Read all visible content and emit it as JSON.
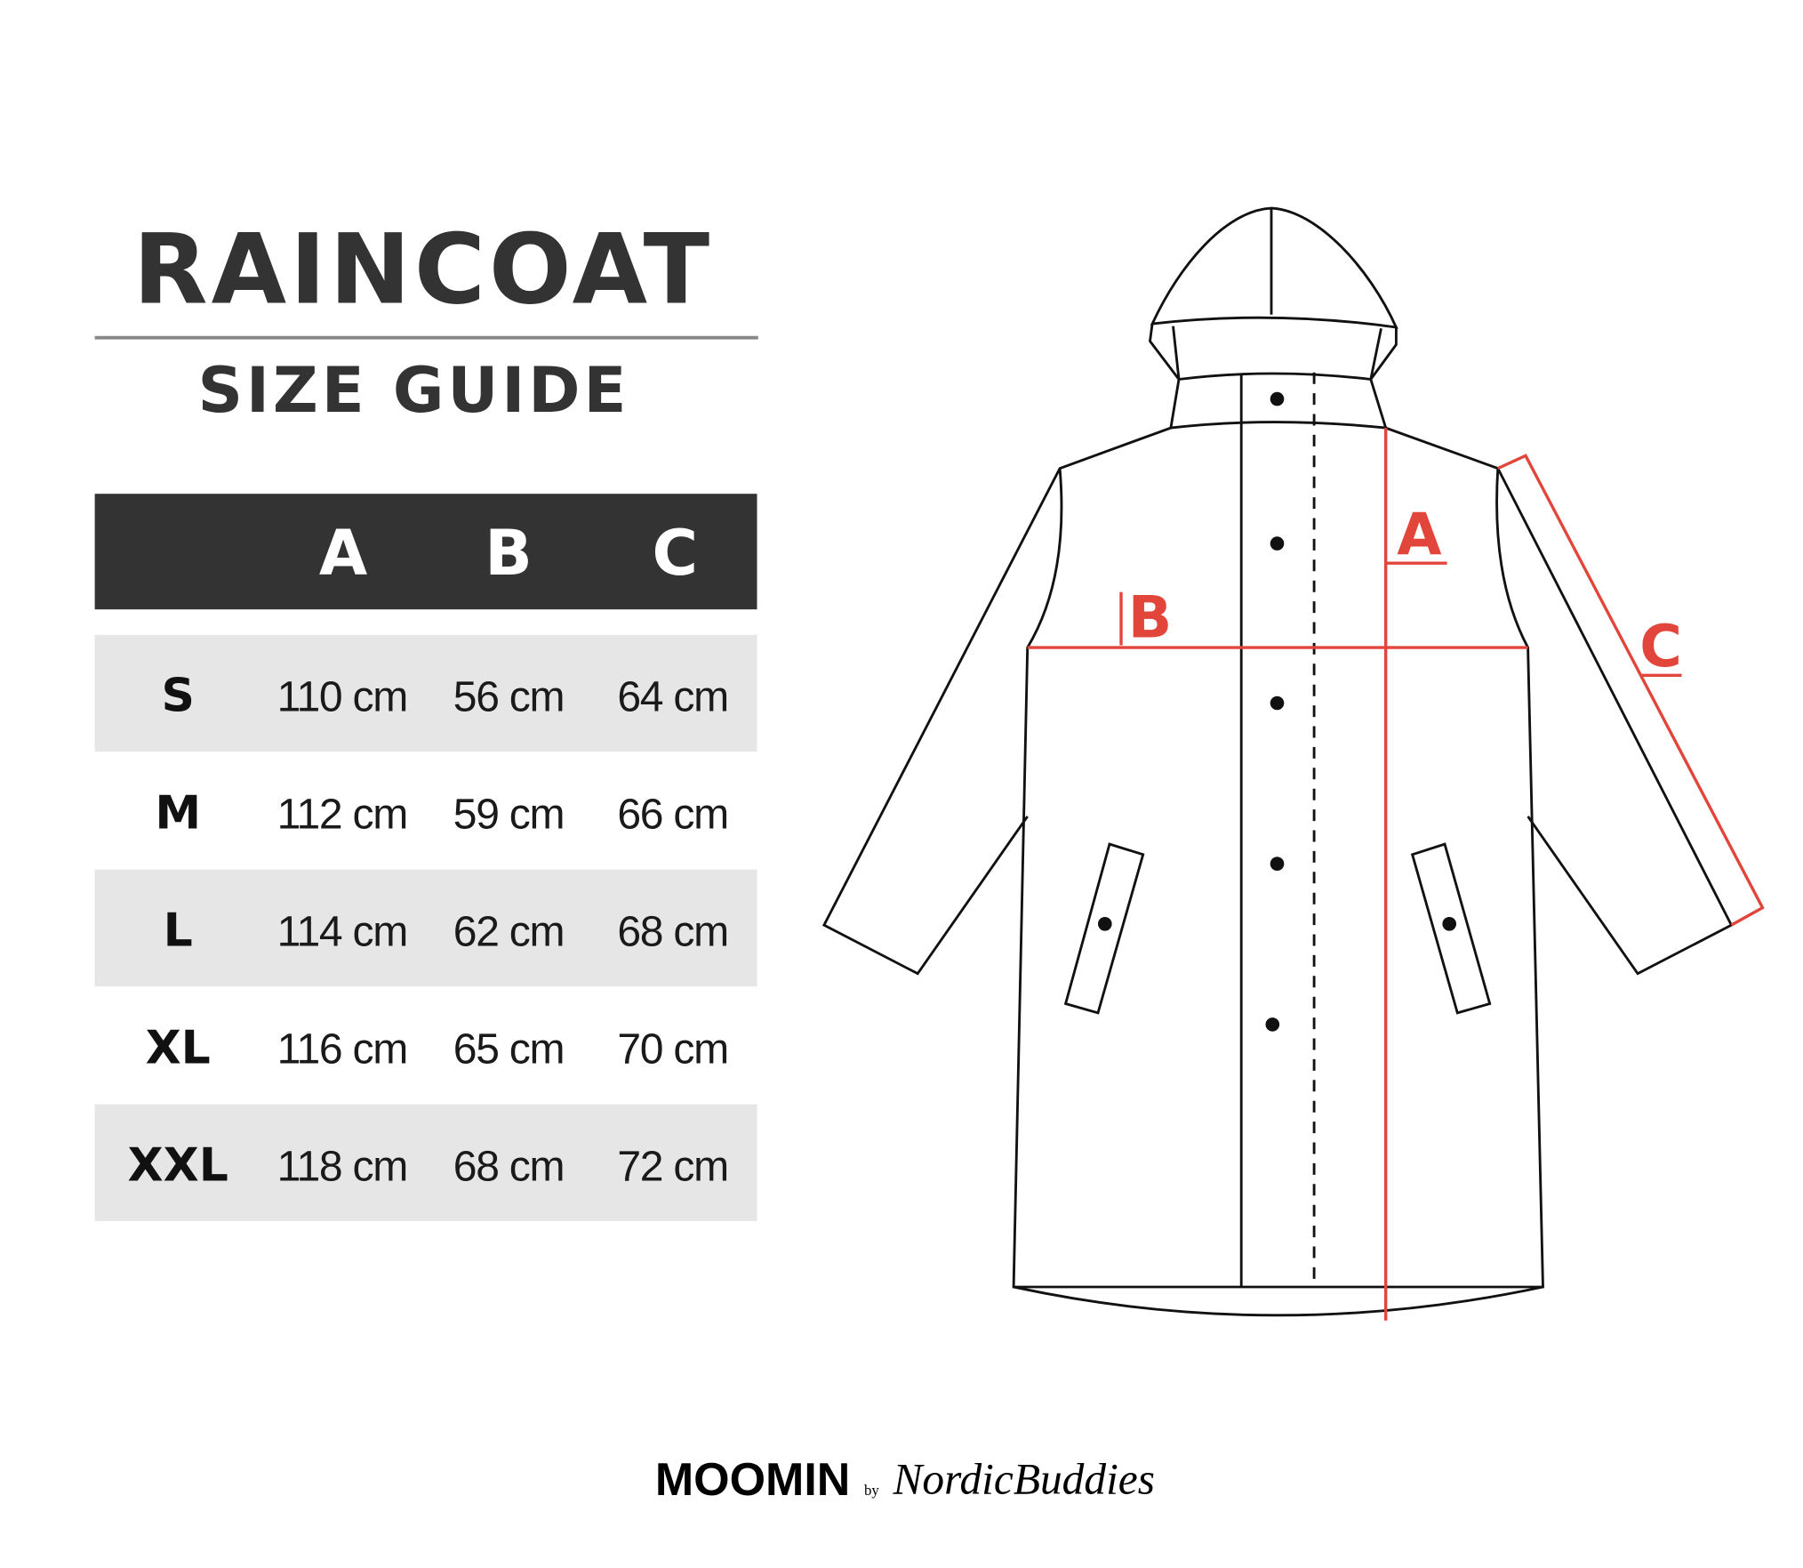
{
  "title": "RAINCOAT",
  "subtitle": "SIZE GUIDE",
  "table": {
    "headers": [
      "",
      "A",
      "B",
      "C"
    ],
    "rows": [
      {
        "size": "S",
        "a": "110 cm",
        "b": "56 cm",
        "c": "64 cm"
      },
      {
        "size": "M",
        "a": "112 cm",
        "b": "59 cm",
        "c": "66 cm"
      },
      {
        "size": "L",
        "a": "114 cm",
        "b": "62 cm",
        "c": "68 cm"
      },
      {
        "size": "XL",
        "a": "116 cm",
        "b": "65 cm",
        "c": "70 cm"
      },
      {
        "size": "XXL",
        "a": "118 cm",
        "b": "68 cm",
        "c": "72 cm"
      }
    ]
  },
  "diagram": {
    "label_a": "A",
    "label_b": "B",
    "label_c": "C"
  },
  "logo": {
    "brand": "MOOMIN",
    "by": "by",
    "partner": "NordicBuddies"
  },
  "colors": {
    "header_bg": "#333333",
    "row_alt_bg": "#e6e6e6",
    "measure_red": "#e2453a"
  }
}
